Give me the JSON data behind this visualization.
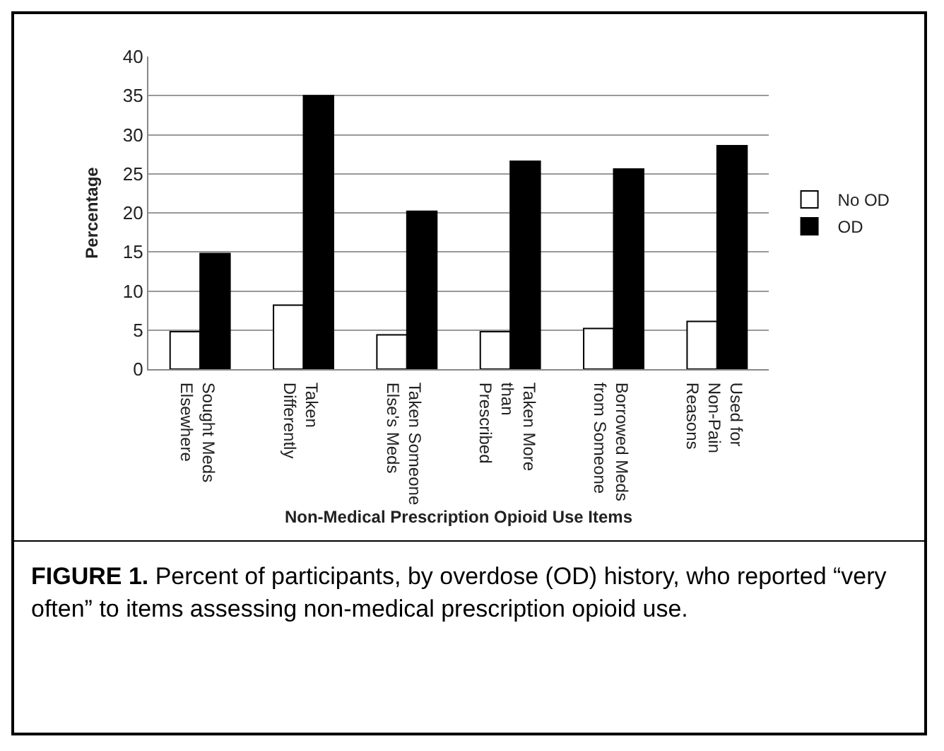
{
  "chart_data": {
    "type": "bar",
    "xlabel": "Non-Medical Prescription Opioid Use Items",
    "ylabel": "Percentage",
    "categories": [
      "Sought Meds Elsewhere",
      "Taken Differently",
      "Taken Someone Else's Meds",
      "Taken More than Prescribed",
      "Borrowed Meds from Someone",
      "Used for Non-Pain Reasons"
    ],
    "series": [
      {
        "name": "No OD",
        "color": "#ffffff",
        "values": [
          4.8,
          8.2,
          4.4,
          4.8,
          5.2,
          6.1
        ]
      },
      {
        "name": "OD",
        "color": "#000000",
        "values": [
          14.8,
          35.0,
          20.2,
          26.6,
          25.6,
          28.6
        ]
      }
    ],
    "ylim": [
      0,
      40
    ],
    "yticks": [
      0,
      5,
      10,
      15,
      20,
      25,
      30,
      35,
      40
    ],
    "grid": "y",
    "legend": "right",
    "annotations": [
      "FIGURE 1. Percent of participants, by overdose (OD) history, who reported “very often” to items assessing non-medical prescription opioid use."
    ]
  }
}
